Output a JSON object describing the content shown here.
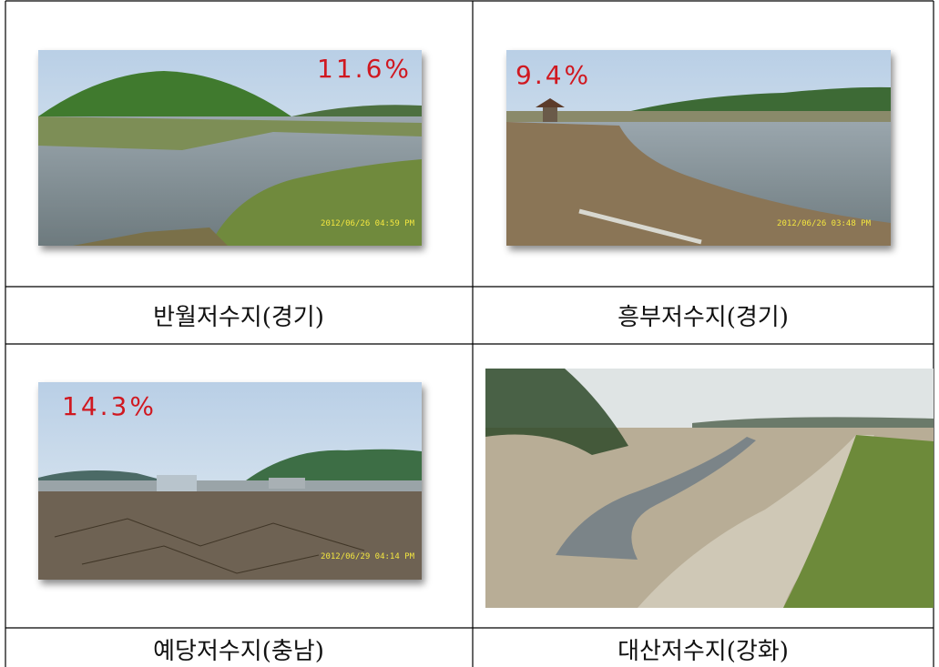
{
  "photos": [
    {
      "label": "11.6%",
      "timestamp": "2012/06/26 04:59 PM"
    },
    {
      "label": "9.4%",
      "timestamp": "2012/06/26 03:48 PM"
    },
    {
      "label": "14.3%",
      "timestamp": "2012/06/29 04:14 PM"
    },
    {}
  ],
  "captions": [
    "반월저수지(경기)",
    "흥부저수지(경기)",
    "예당저수지(충남)",
    "대산저수지(강화)"
  ]
}
